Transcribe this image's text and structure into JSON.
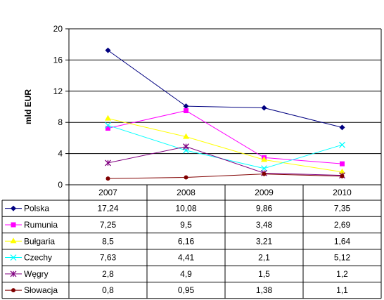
{
  "chart_data": {
    "type": "line",
    "ylabel": "mld EUR",
    "ylim": [
      0,
      20
    ],
    "yticks": [
      0,
      4,
      8,
      12,
      16,
      20
    ],
    "grid": "horizontal",
    "legend": "data-table",
    "categories": [
      "2007",
      "2008",
      "2009",
      "2010"
    ],
    "series": [
      {
        "name": "Polska",
        "color": "#000080",
        "marker": "diamond",
        "values": [
          17.24,
          10.08,
          9.86,
          7.35
        ],
        "labels": [
          "17,24",
          "10,08",
          "9,86",
          "7,35"
        ]
      },
      {
        "name": "Rumunia",
        "color": "#ff00ff",
        "marker": "square",
        "values": [
          7.25,
          9.5,
          3.48,
          2.69
        ],
        "labels": [
          "7,25",
          "9,5",
          "3,48",
          "2,69"
        ]
      },
      {
        "name": "Bułgaria",
        "color": "#ffff00",
        "marker": "triangle",
        "values": [
          8.5,
          6.16,
          3.21,
          1.64
        ],
        "labels": [
          "8,5",
          "6,16",
          "3,21",
          "1,64"
        ]
      },
      {
        "name": "Czechy",
        "color": "#00ffff",
        "marker": "x",
        "values": [
          7.63,
          4.41,
          2.1,
          5.12
        ],
        "labels": [
          "7,63",
          "4,41",
          "2,1",
          "5,12"
        ]
      },
      {
        "name": "Węgry",
        "color": "#800080",
        "marker": "star",
        "values": [
          2.8,
          4.9,
          1.5,
          1.2
        ],
        "labels": [
          "2,8",
          "4,9",
          "1,5",
          "1,2"
        ]
      },
      {
        "name": "Słowacja",
        "color": "#800000",
        "marker": "dot",
        "values": [
          0.8,
          0.95,
          1.38,
          1.1
        ],
        "labels": [
          "0,8",
          "0,95",
          "1,38",
          "1,1"
        ]
      }
    ]
  }
}
